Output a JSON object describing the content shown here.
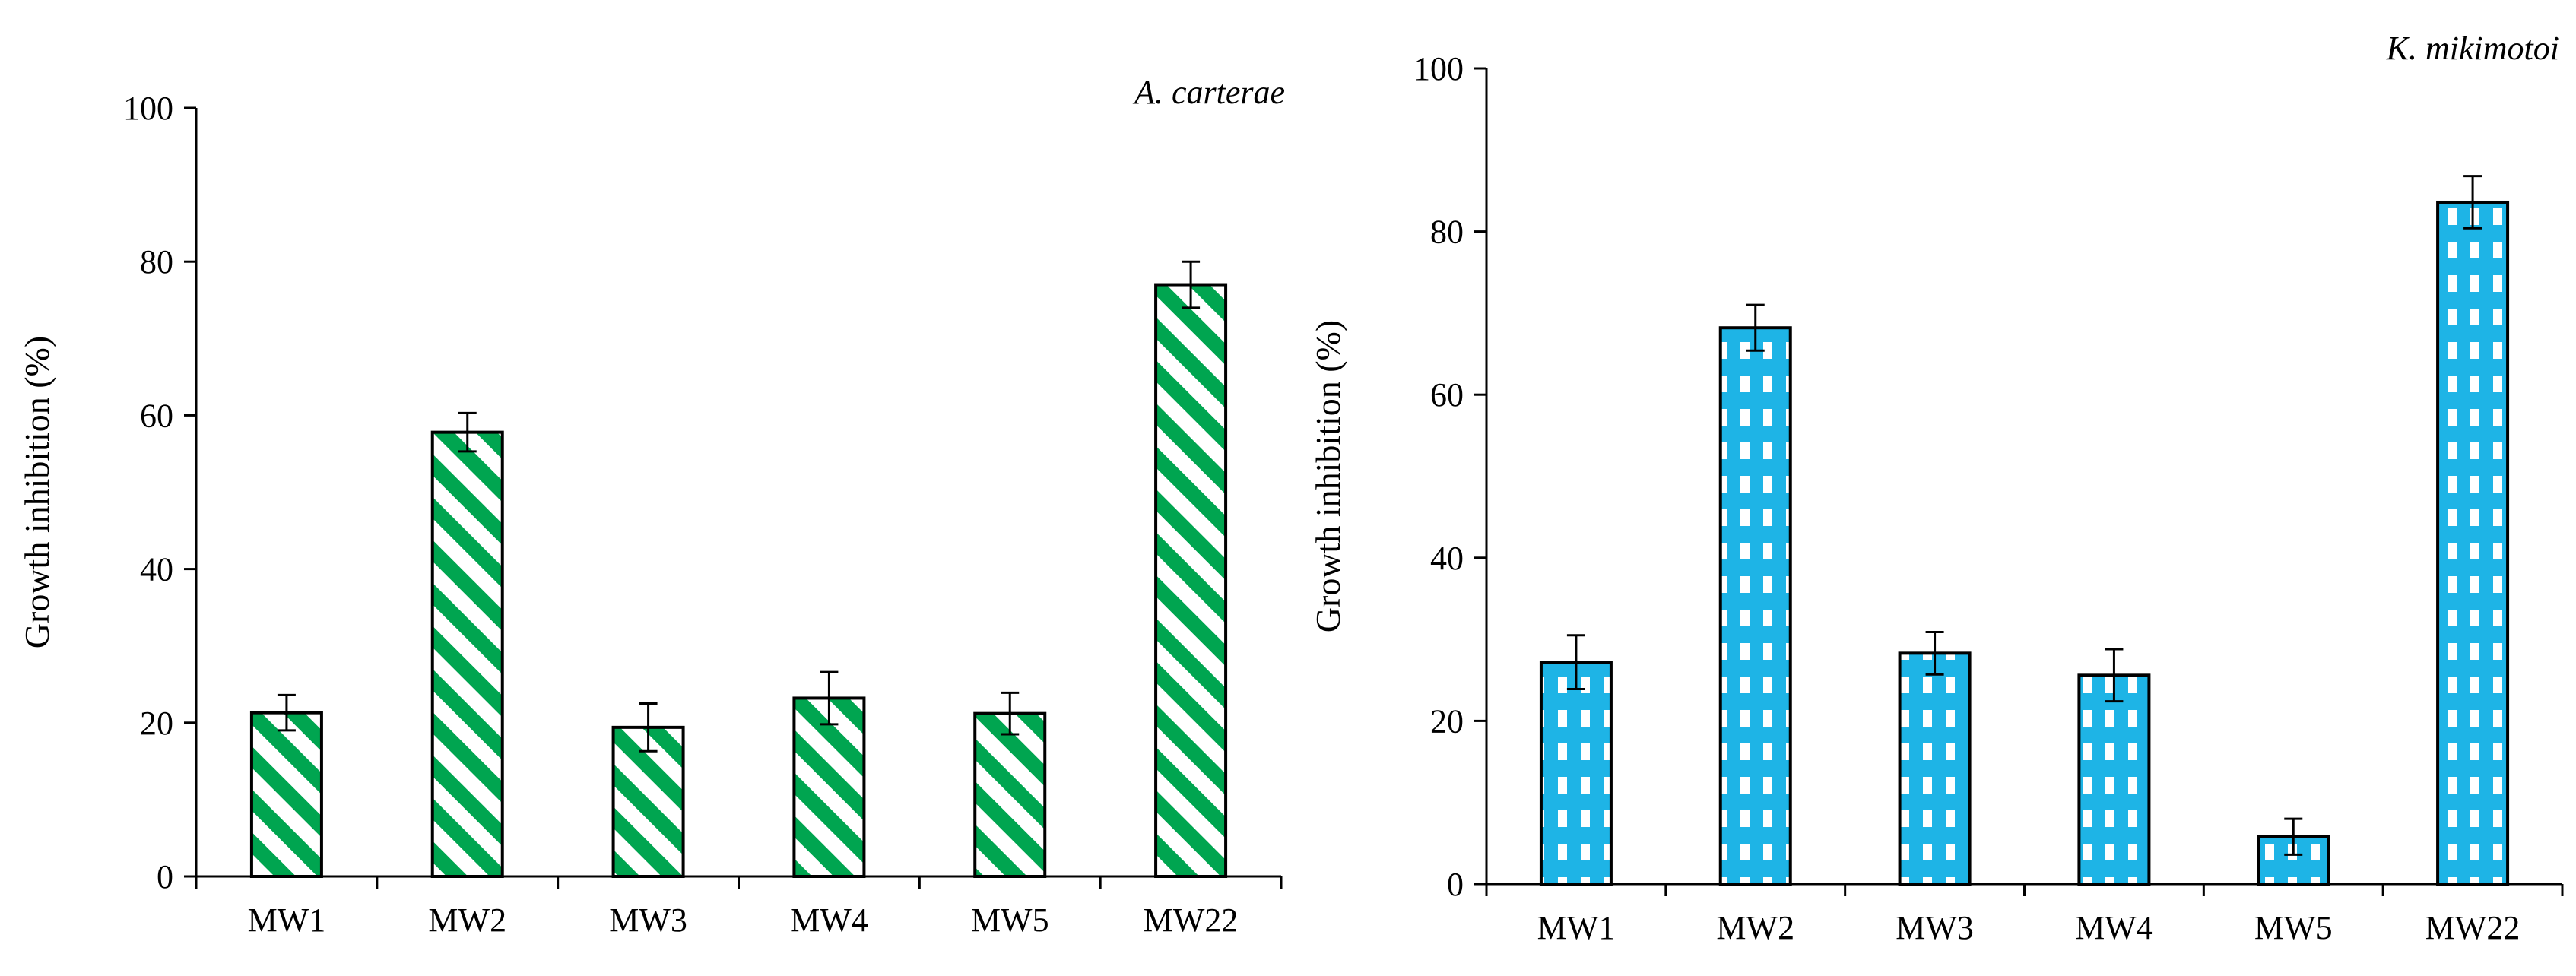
{
  "chart_data": [
    {
      "type": "bar",
      "title": "A. carterae",
      "xlabel": "",
      "ylabel": "Growth inhibition (%)",
      "ylim": [
        0,
        100
      ],
      "yticks": [
        0,
        20,
        40,
        60,
        80,
        100
      ],
      "grid": false,
      "legend": "none",
      "categories": [
        "MW1",
        "MW2",
        "MW3",
        "MW4",
        "MW5",
        "MW22"
      ],
      "values": [
        21.3,
        57.8,
        19.4,
        23.2,
        21.2,
        77.0
      ],
      "errors": [
        2.3,
        2.5,
        3.1,
        3.4,
        2.7,
        3.0
      ],
      "bar_pattern": "diagonal-stripes",
      "colors": {
        "fill": "#00A550",
        "fill_alt": "#ffffff",
        "stroke": "#000000"
      }
    },
    {
      "type": "bar",
      "title": "K. mikimotoi",
      "xlabel": "",
      "ylabel": "Growth inhibition (%)",
      "ylim": [
        0,
        100
      ],
      "yticks": [
        0,
        20,
        40,
        60,
        80,
        100
      ],
      "grid": false,
      "legend": "none",
      "categories": [
        "MW1",
        "MW2",
        "MW3",
        "MW4",
        "MW5",
        "MW22"
      ],
      "values": [
        27.2,
        68.2,
        28.3,
        25.6,
        5.8,
        83.6
      ],
      "errors": [
        3.3,
        2.8,
        2.6,
        3.2,
        2.2,
        3.2
      ],
      "bar_pattern": "checkered",
      "colors": {
        "fill": "#1EB4E6",
        "fill_alt": "#ffffff",
        "stroke": "#000000"
      }
    }
  ]
}
